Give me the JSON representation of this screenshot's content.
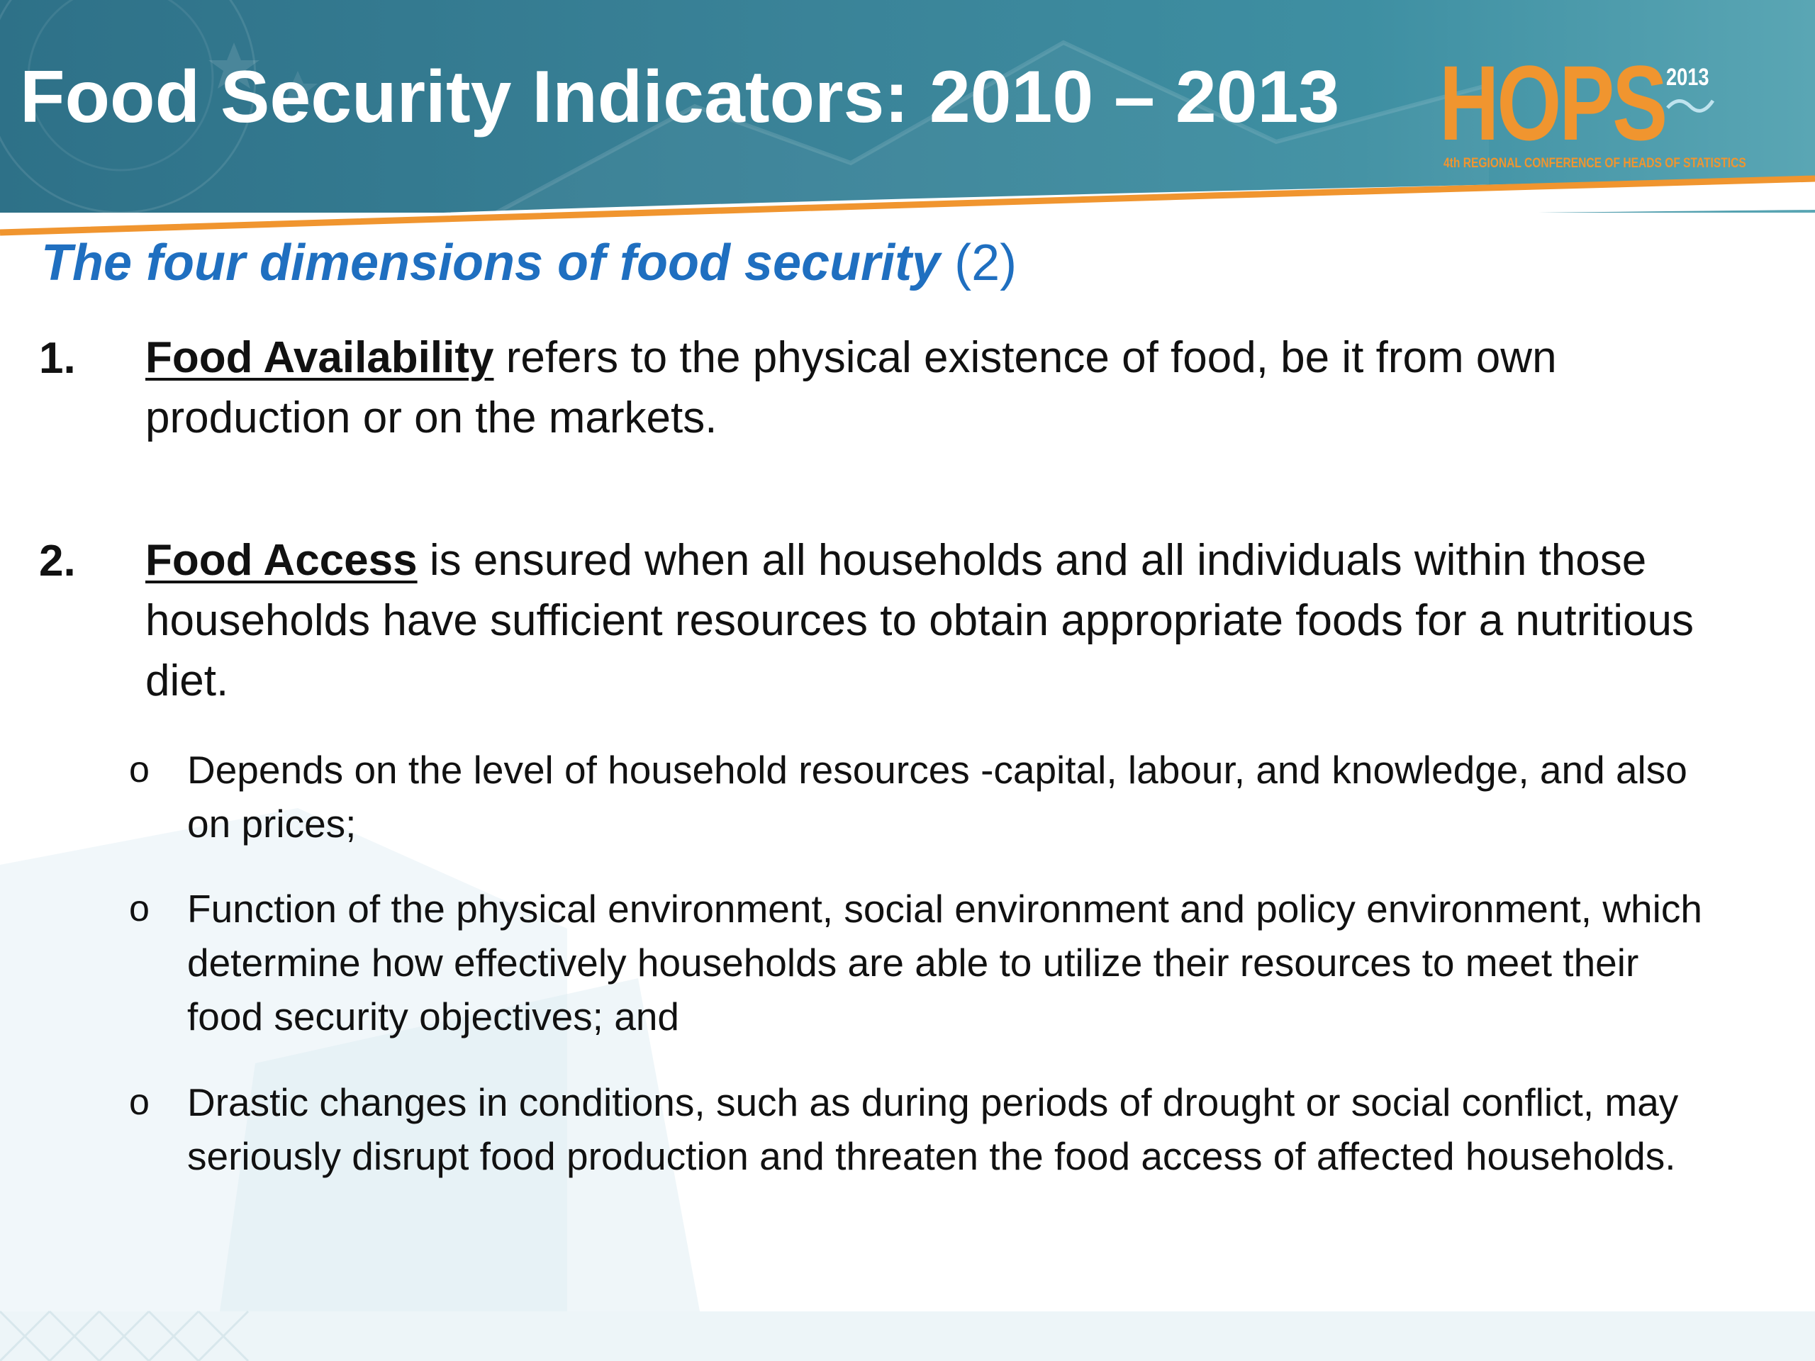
{
  "slide": {
    "title": "Food Security Indicators: 2010 – 2013",
    "subtitle_main": "The four dimensions of food security",
    "subtitle_suffix": "(2)"
  },
  "logo": {
    "letters": "HOPS",
    "year": "2013",
    "tagline": "4th REGIONAL CONFERENCE OF HEADS OF STATISTICS",
    "color": "#f0952f"
  },
  "items": [
    {
      "number": "1.",
      "term": "Food Availability",
      "text": " refers to the physical existence of food, be it from own production or on the markets."
    },
    {
      "number": "2.",
      "term": "Food Access",
      "text": " is ensured when all households and all individuals within those households have sufficient resources to obtain appropriate foods for a nutritious diet."
    }
  ],
  "bullets": [
    {
      "marker": "o",
      "text": "Depends on the level of household resources -capital, labour, and knowledge, and also on prices;"
    },
    {
      "marker": "o",
      "text": "Function of the physical environment, social environment and policy environment, which determine how effectively households are able to utilize their resources to meet their food security objectives; and"
    },
    {
      "marker": "o",
      "text": "Drastic changes in conditions, such as during periods of drought or social conflict, may seriously disrupt food production and threaten the food access of affected households."
    }
  ],
  "colors": {
    "header": "#3a8398",
    "accent_orange": "#f0952f",
    "subtitle_blue": "#1f6fc0"
  }
}
